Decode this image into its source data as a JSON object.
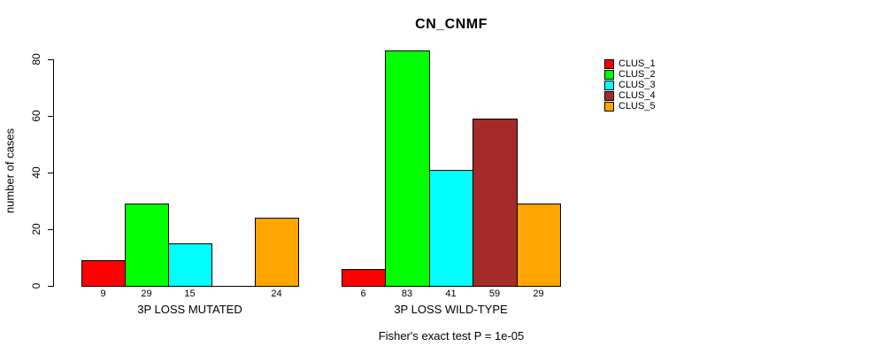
{
  "chart_data": {
    "type": "bar",
    "title": "CN_CNMF",
    "ylabel": "number of cases",
    "xlabel": "",
    "ylim": [
      0,
      80
    ],
    "yticks": [
      0,
      20,
      40,
      60,
      80
    ],
    "grid": false,
    "legend_position": "right",
    "legend": [
      {
        "name": "CLUS_1",
        "color": "#FF0000"
      },
      {
        "name": "CLUS_2",
        "color": "#00FF00"
      },
      {
        "name": "CLUS_3",
        "color": "#00FFFF"
      },
      {
        "name": "CLUS_4",
        "color": "#A52A2A"
      },
      {
        "name": "CLUS_5",
        "color": "#FFA500"
      }
    ],
    "categories": [
      "3P LOSS MUTATED",
      "3P LOSS WILD-TYPE"
    ],
    "series": [
      {
        "name": "CLUS_1",
        "values": [
          9,
          6
        ]
      },
      {
        "name": "CLUS_2",
        "values": [
          29,
          83
        ]
      },
      {
        "name": "CLUS_3",
        "values": [
          15,
          41
        ]
      },
      {
        "name": "CLUS_4",
        "values": [
          0,
          59
        ]
      },
      {
        "name": "CLUS_5",
        "values": [
          24,
          29
        ]
      }
    ],
    "bar_labels": [
      [
        "9",
        "29",
        "15",
        "",
        "24"
      ],
      [
        "6",
        "83",
        "41",
        "59",
        "29"
      ]
    ],
    "footnote": "Fisher's exact test P = 1e-05"
  }
}
